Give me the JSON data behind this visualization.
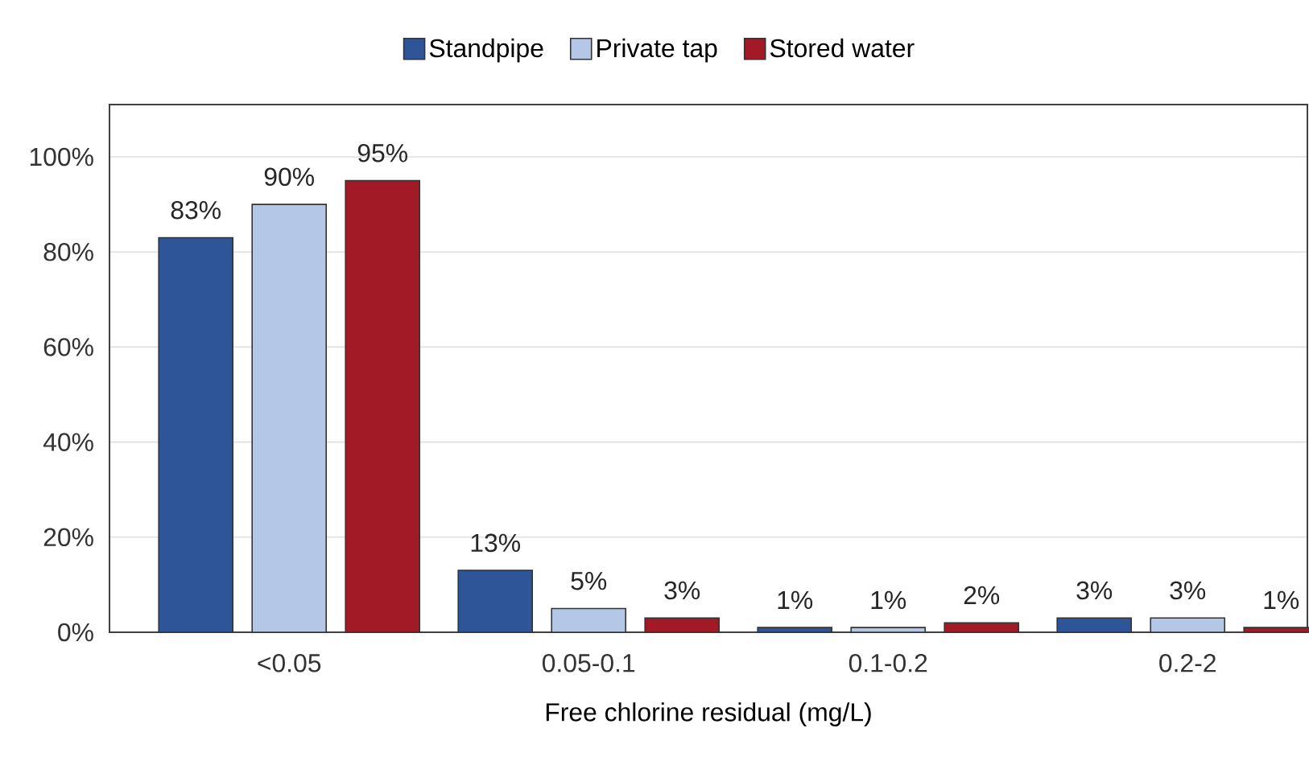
{
  "chart_data": {
    "type": "bar",
    "xlabel": "Free chlorine residual (mg/L)",
    "categories": [
      "<0.05",
      "0.05-0.1",
      "0.1-0.2",
      "0.2-2"
    ],
    "series": [
      {
        "name": "Standpipe",
        "color": "#2e5597",
        "values": [
          83,
          13,
          1,
          3
        ],
        "value_labels": [
          "83%",
          "13%",
          "1%",
          "3%"
        ]
      },
      {
        "name": "Private tap",
        "color": "#b4c7e7",
        "values": [
          90,
          5,
          1,
          3
        ],
        "value_labels": [
          "90%",
          "5%",
          "1%",
          "3%"
        ]
      },
      {
        "name": "Stored water",
        "color": "#a31a27",
        "values": [
          95,
          3,
          2,
          1
        ],
        "value_labels": [
          "95%",
          "3%",
          "2%",
          "1%"
        ]
      }
    ],
    "ylim": [
      0,
      111
    ],
    "yticks": [
      {
        "value": 0,
        "label": "0%"
      },
      {
        "value": 20,
        "label": "20%"
      },
      {
        "value": 40,
        "label": "40%"
      },
      {
        "value": 60,
        "label": "60%"
      },
      {
        "value": 80,
        "label": "80%"
      },
      {
        "value": 100,
        "label": "100%"
      }
    ],
    "grid": "y",
    "legend": "top"
  }
}
